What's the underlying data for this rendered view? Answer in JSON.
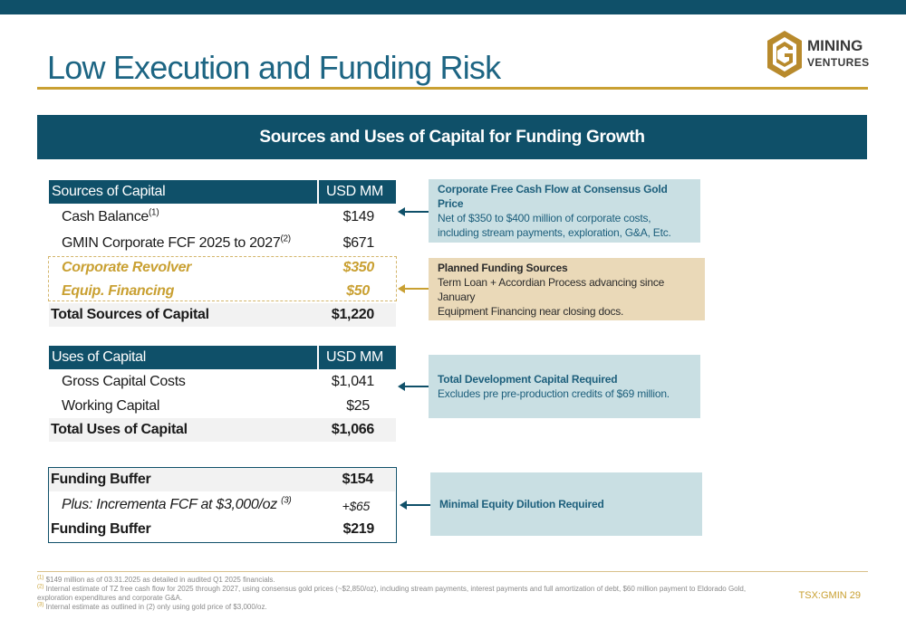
{
  "page": {
    "title": "Low Execution and Funding Risk",
    "banner": "Sources and Uses of Capital for Funding Growth",
    "logo_line1": "MINING",
    "logo_line2": "VENTURES",
    "page_ref": "TSX:GMIN 29"
  },
  "sources": {
    "header_label": "Sources of Capital",
    "header_unit": "USD MM",
    "rows": [
      {
        "label": "Cash Balance",
        "sup": "(1)",
        "value": "$149"
      },
      {
        "label": "GMIN Corporate FCF 2025 to 2027",
        "sup": "(2)",
        "value": "$671"
      },
      {
        "label": "Corporate Revolver",
        "value": "$350"
      },
      {
        "label": "Equip. Financing",
        "value": "$50"
      }
    ],
    "total_label": "Total Sources of Capital",
    "total_value": "$1,220"
  },
  "uses": {
    "header_label": "Uses of Capital",
    "header_unit": "USD MM",
    "rows": [
      {
        "label": "Gross Capital Costs",
        "value": "$1,041"
      },
      {
        "label": "Working Capital",
        "value": "$25"
      }
    ],
    "total_label": "Total Uses of Capital",
    "total_value": "$1,066"
  },
  "buffer": {
    "label1": "Funding Buffer",
    "value1": "$154",
    "plus_label": "Plus: Incrementa FCF at $3,000/oz",
    "plus_sup": "(3)",
    "plus_value": "+$65",
    "label2": "Funding Buffer",
    "value2": "$219"
  },
  "callouts": {
    "fcf": {
      "heading": "Corporate Free Cash Flow at Consensus Gold Price",
      "body": "Net of $350 to $400 million of corporate costs, including stream payments, exploration, G&A, Etc."
    },
    "planned": {
      "heading": "Planned Funding Sources",
      "line1": "Term Loan + Accordian Process advancing since January",
      "line2": "Equipment Financing near closing docs."
    },
    "dev": {
      "heading": "Total Development Capital Required",
      "body": "Excludes pre pre-production credits of $69 million."
    },
    "equity": {
      "heading": "Minimal Equity Dilution Required"
    }
  },
  "footnotes": [
    {
      "num": "(1)",
      "text": "$149 million as of 03.31.2025 as detailed in audited Q1 2025 financials."
    },
    {
      "num": "(2)",
      "text": "Internal estimate of TZ free cash flow for 2025 through 2027, using consensus gold prices (~$2,850/oz), including stream payments, interest payments and full amortization of debt, $60 million payment to Eldorado Gold, exploration expenditures and corporate G&A."
    },
    {
      "num": "(3)",
      "text": "Internal estimate as outlined in (2) only using gold price of $3,000/oz."
    }
  ],
  "colors": {
    "navy": "#0f5069",
    "gold": "#c9a032",
    "callout_teal": "#c9dfe3",
    "callout_tan": "#ead9b8"
  }
}
